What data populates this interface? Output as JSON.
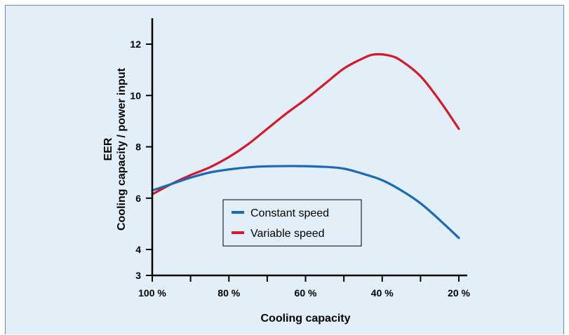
{
  "chart_data": {
    "type": "line",
    "xlabel": "Cooling capacity",
    "ylabel_line1": "EER",
    "ylabel_line2": "Cooling capacity / power input",
    "x_ticks": [
      100,
      90,
      80,
      70,
      60,
      50,
      40,
      30,
      20
    ],
    "x_tick_labels": [
      "100 %",
      "",
      "80 %",
      "",
      "60 %",
      "",
      "40 %",
      "",
      "20 %"
    ],
    "y_ticks": [
      3,
      4,
      6,
      8,
      10,
      12
    ],
    "y_tick_labels": [
      "3",
      "4",
      "6",
      "8",
      "10",
      "12"
    ],
    "xlim": [
      100,
      20
    ],
    "ylim": [
      3,
      13
    ],
    "grid": false,
    "legend_position": "center",
    "series": [
      {
        "name": "Constant speed",
        "color": "#1a6ab5",
        "points": [
          {
            "x": 100,
            "y": 6.3
          },
          {
            "x": 95,
            "y": 6.55
          },
          {
            "x": 90,
            "y": 6.8
          },
          {
            "x": 85,
            "y": 7.0
          },
          {
            "x": 80,
            "y": 7.12
          },
          {
            "x": 75,
            "y": 7.2
          },
          {
            "x": 70,
            "y": 7.24
          },
          {
            "x": 62,
            "y": 7.25
          },
          {
            "x": 55,
            "y": 7.22
          },
          {
            "x": 50,
            "y": 7.15
          },
          {
            "x": 45,
            "y": 6.95
          },
          {
            "x": 40,
            "y": 6.7
          },
          {
            "x": 35,
            "y": 6.3
          },
          {
            "x": 30,
            "y": 5.8
          },
          {
            "x": 25,
            "y": 5.15
          },
          {
            "x": 20,
            "y": 4.45
          }
        ]
      },
      {
        "name": "Variable speed",
        "color": "#d7182a",
        "points": [
          {
            "x": 100,
            "y": 6.15
          },
          {
            "x": 95,
            "y": 6.55
          },
          {
            "x": 90,
            "y": 6.9
          },
          {
            "x": 85,
            "y": 7.2
          },
          {
            "x": 80,
            "y": 7.6
          },
          {
            "x": 75,
            "y": 8.1
          },
          {
            "x": 70,
            "y": 8.7
          },
          {
            "x": 65,
            "y": 9.3
          },
          {
            "x": 60,
            "y": 9.85
          },
          {
            "x": 55,
            "y": 10.45
          },
          {
            "x": 50,
            "y": 11.05
          },
          {
            "x": 45,
            "y": 11.45
          },
          {
            "x": 42,
            "y": 11.6
          },
          {
            "x": 38,
            "y": 11.55
          },
          {
            "x": 35,
            "y": 11.35
          },
          {
            "x": 30,
            "y": 10.75
          },
          {
            "x": 25,
            "y": 9.8
          },
          {
            "x": 20,
            "y": 8.7
          }
        ]
      }
    ]
  }
}
